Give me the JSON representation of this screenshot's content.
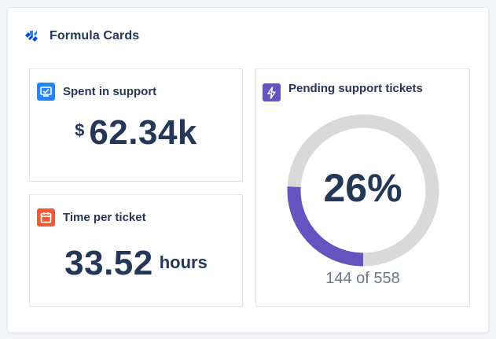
{
  "header": {
    "title": "Formula Cards",
    "icon": "formula-cards-logo"
  },
  "cards": {
    "spent": {
      "label": "Spent in support",
      "currency": "$",
      "value": "62.34k",
      "icon": "monitor-icon",
      "icon_color": "#2684ff"
    },
    "time": {
      "label": "Time per ticket",
      "value": "33.52",
      "unit": "hours",
      "icon": "calendar-icon",
      "icon_color": "#ee5a3a"
    },
    "pending": {
      "label": "Pending support tickets",
      "icon": "lightning-icon",
      "icon_color": "#6554c0",
      "percent_label": "26%",
      "count_label": "144 of 558",
      "fraction": 0.258,
      "ring_color": "#6554c0",
      "track_color": "#d9d9d9"
    }
  }
}
